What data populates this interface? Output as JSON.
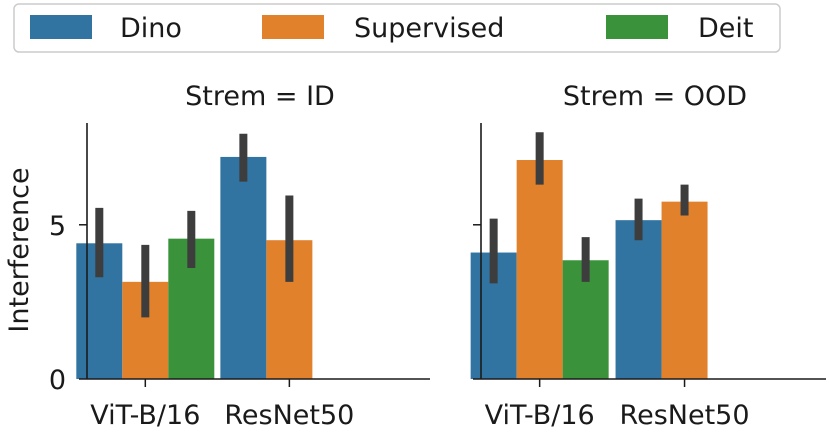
{
  "chart_data": {
    "type": "bar",
    "ylabel": "Interference",
    "ylim": [
      0,
      8.3
    ],
    "yticks": [
      0,
      5
    ],
    "categories": [
      "ViT-B/16",
      "ResNet50"
    ],
    "legend": {
      "placement": "top",
      "entries": [
        {
          "name": "Dino",
          "color": "#3274a1"
        },
        {
          "name": "Supervised",
          "color": "#e1812c"
        },
        {
          "name": "Deit",
          "color": "#3a923a"
        }
      ]
    },
    "panels": [
      {
        "title": "Strem = ID",
        "series": [
          {
            "name": "Dino",
            "values": [
              4.4,
              7.2
            ],
            "ci_low": [
              3.3,
              6.4
            ],
            "ci_high": [
              5.55,
              7.95
            ]
          },
          {
            "name": "Supervised",
            "values": [
              3.15,
              4.5
            ],
            "ci_low": [
              2.0,
              3.15
            ],
            "ci_high": [
              4.35,
              5.95
            ]
          },
          {
            "name": "Deit",
            "values": [
              4.55,
              null
            ],
            "ci_low": [
              3.6,
              null
            ],
            "ci_high": [
              5.45,
              null
            ]
          }
        ]
      },
      {
        "title": "Strem = OOD",
        "series": [
          {
            "name": "Dino",
            "values": [
              4.1,
              5.15
            ],
            "ci_low": [
              3.1,
              4.5
            ],
            "ci_high": [
              5.2,
              5.85
            ]
          },
          {
            "name": "Supervised",
            "values": [
              7.1,
              5.75
            ],
            "ci_low": [
              6.3,
              5.3
            ],
            "ci_high": [
              8.0,
              6.3
            ]
          },
          {
            "name": "Deit",
            "values": [
              3.85,
              null
            ],
            "ci_low": [
              3.15,
              null
            ],
            "ci_high": [
              4.6,
              null
            ]
          }
        ]
      }
    ]
  }
}
